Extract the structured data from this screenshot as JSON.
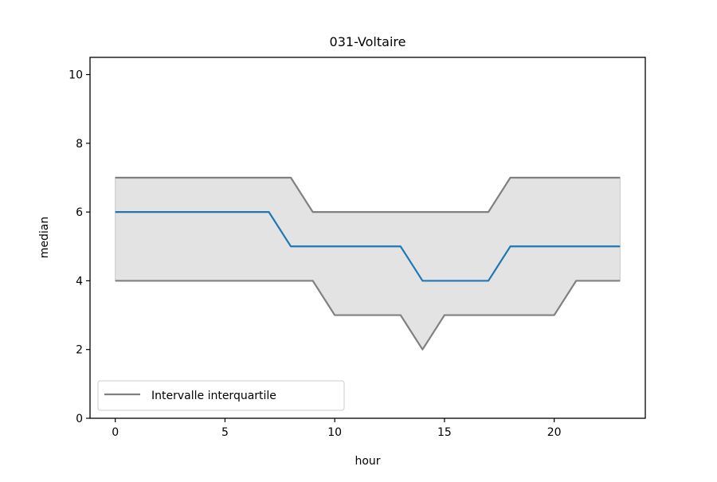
{
  "chart_data": {
    "type": "line",
    "title": "031-Voltaire",
    "xlabel": "hour",
    "ylabel": "median",
    "xlim": [
      -1.15,
      24.15
    ],
    "ylim": [
      0,
      10.5
    ],
    "xticks": [
      0,
      5,
      10,
      15,
      20
    ],
    "yticks": [
      0,
      2,
      4,
      6,
      8,
      10
    ],
    "x": [
      0,
      1,
      2,
      3,
      4,
      5,
      6,
      7,
      8,
      9,
      10,
      11,
      12,
      13,
      14,
      15,
      16,
      17,
      18,
      19,
      20,
      21,
      22,
      23
    ],
    "series": [
      {
        "role": "median",
        "values": [
          6,
          6,
          6,
          6,
          6,
          6,
          6,
          6,
          5,
          5,
          5,
          5,
          5,
          5,
          4,
          4,
          4,
          4,
          5,
          5,
          5,
          5,
          5,
          5
        ],
        "color": "#1f77b4"
      },
      {
        "name": "Intervalle interquartile",
        "role": "q1",
        "values": [
          4,
          4,
          4,
          4,
          4,
          4,
          4,
          4,
          4,
          4,
          3,
          3,
          3,
          3,
          2,
          3,
          3,
          3,
          3,
          3,
          3,
          4,
          4,
          4
        ],
        "color": "#808080"
      },
      {
        "role": "q3",
        "values": [
          7,
          7,
          7,
          7,
          7,
          7,
          7,
          7,
          7,
          6,
          6,
          6,
          6,
          6,
          6,
          6,
          6,
          6,
          7,
          7,
          7,
          7,
          7,
          7
        ],
        "color": "#808080"
      }
    ],
    "band_color": "#e3e3e3",
    "grid": false,
    "legend": {
      "position": "lower-left",
      "entries": [
        "Intervalle interquartile"
      ]
    }
  }
}
